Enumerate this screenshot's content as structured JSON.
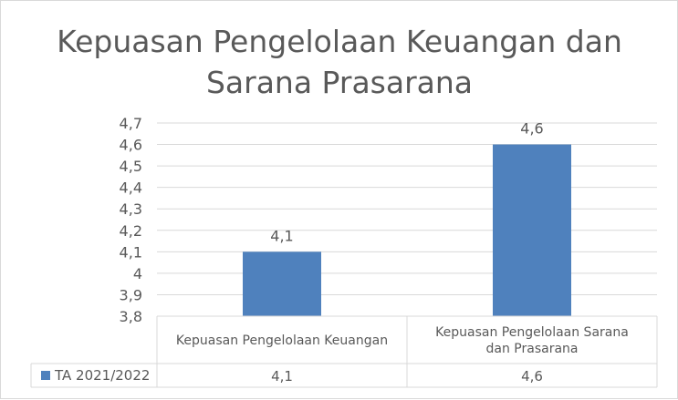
{
  "chart_data": {
    "type": "bar",
    "title": "Kepuasan Pengelolaan Keuangan dan Sarana Prasarana",
    "title_lines": [
      "Kepuasan Pengelolaan Keuangan dan",
      "Sarana Prasarana"
    ],
    "categories": [
      "Kepuasan Pengelolaan Keuangan",
      "Kepuasan Pengelolaan Sarana dan Prasarana"
    ],
    "category_lines": [
      [
        "Kepuasan Pengelolaan Keuangan"
      ],
      [
        "Kepuasan Pengelolaan Sarana",
        "dan Prasarana"
      ]
    ],
    "series": [
      {
        "name": "TA 2021/2022",
        "values": [
          4.1,
          4.6
        ],
        "value_labels": [
          "4,1",
          "4,6"
        ],
        "color": "#4f81bd"
      }
    ],
    "ylim": [
      3.8,
      4.7
    ],
    "yticks": [
      3.8,
      3.9,
      4.0,
      4.1,
      4.2,
      4.3,
      4.4,
      4.5,
      4.6,
      4.7
    ],
    "ytick_labels": [
      "3,8",
      "3,9",
      "4",
      "4,1",
      "4,2",
      "4,3",
      "4,4",
      "4,5",
      "4,6",
      "4,7"
    ],
    "grid": true,
    "data_table": true,
    "legend": "in data table"
  }
}
